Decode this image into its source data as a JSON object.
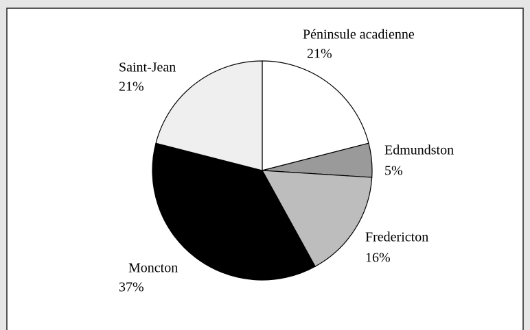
{
  "chart_data": {
    "type": "pie",
    "categories": [
      "Péninsule acadienne",
      "Edmundston",
      "Fredericton",
      "Moncton",
      "Saint-Jean"
    ],
    "values": [
      21,
      5,
      16,
      37,
      21
    ],
    "value_labels": [
      "21%",
      "5%",
      "16%",
      "37%",
      "21%"
    ],
    "colors": [
      "#ffffff",
      "#9a9a9a",
      "#bdbdbd",
      "#000000",
      "#efefef"
    ]
  }
}
